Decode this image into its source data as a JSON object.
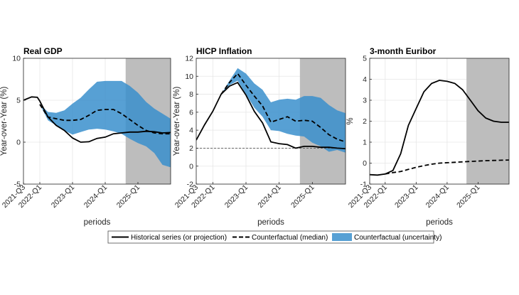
{
  "colors": {
    "historical": "#000000",
    "counterfactual": "#000000",
    "band": "#3a8fcc",
    "band_opacity": 0.85,
    "projection_shade": "#bdbdbd",
    "grid": "#e6e6e6"
  },
  "legend": {
    "historical": "Historical series (or projection)",
    "median": "Counterfactual (median)",
    "uncertainty": "Counterfactual (uncertainty)"
  },
  "chart_data": [
    {
      "type": "line",
      "title": "Real GDP",
      "ylabel": "Year-over-Year (%)",
      "xlabel": "periods",
      "ylim": [
        -5,
        10
      ],
      "yticks": [
        -5,
        0,
        5,
        10
      ],
      "xlim": [
        0,
        18
      ],
      "xticks": [
        {
          "x": 0,
          "label": "2021-Q3"
        },
        {
          "x": 2,
          "label": "2022-Q1"
        },
        {
          "x": 6,
          "label": "2023-Q1"
        },
        {
          "x": 10,
          "label": "2024-Q1"
        },
        {
          "x": 14,
          "label": "2025-Q1"
        }
      ],
      "projection_start": 12.5,
      "reference_line": null,
      "historical": [
        [
          0,
          5.0
        ],
        [
          1,
          5.4
        ],
        [
          1.7,
          5.35
        ],
        [
          2,
          4.9
        ],
        [
          3,
          3.0
        ],
        [
          4,
          2.0
        ],
        [
          5,
          1.4
        ],
        [
          6,
          0.5
        ],
        [
          7,
          0.0
        ],
        [
          8,
          0.05
        ],
        [
          9,
          0.45
        ],
        [
          10,
          0.6
        ],
        [
          11,
          1.0
        ],
        [
          12,
          1.1
        ],
        [
          13,
          1.2
        ],
        [
          14,
          1.2
        ],
        [
          15,
          1.3
        ],
        [
          16,
          1.25
        ],
        [
          17,
          1.1
        ],
        [
          18,
          1.15
        ]
      ],
      "median": [
        [
          2,
          4.5
        ],
        [
          3,
          3.0
        ],
        [
          4,
          2.8
        ],
        [
          5,
          2.6
        ],
        [
          6,
          2.6
        ],
        [
          7,
          2.7
        ],
        [
          8,
          3.2
        ],
        [
          9,
          3.8
        ],
        [
          10,
          3.9
        ],
        [
          11,
          3.9
        ],
        [
          12,
          3.4
        ],
        [
          13,
          2.7
        ],
        [
          14,
          2.0
        ],
        [
          15,
          1.4
        ],
        [
          16,
          1.1
        ],
        [
          17,
          1.0
        ],
        [
          18,
          1.0
        ]
      ],
      "band_upper": [
        [
          2,
          4.5
        ],
        [
          3,
          3.6
        ],
        [
          4,
          3.5
        ],
        [
          5,
          3.8
        ],
        [
          6,
          4.6
        ],
        [
          7,
          5.3
        ],
        [
          8,
          6.3
        ],
        [
          9,
          7.2
        ],
        [
          10,
          7.3
        ],
        [
          11,
          7.3
        ],
        [
          12,
          7.3
        ],
        [
          13,
          6.7
        ],
        [
          14,
          5.9
        ],
        [
          15,
          4.8
        ],
        [
          16,
          4.0
        ],
        [
          17,
          3.4
        ],
        [
          18,
          2.8
        ]
      ],
      "band_lower": [
        [
          18,
          -3.0
        ],
        [
          17,
          -2.7
        ],
        [
          16,
          -1.3
        ],
        [
          15,
          -0.5
        ],
        [
          14,
          -0.1
        ],
        [
          13,
          0.4
        ],
        [
          12,
          1.0
        ],
        [
          11,
          1.3
        ],
        [
          10,
          1.5
        ],
        [
          9,
          1.6
        ],
        [
          8,
          1.5
        ],
        [
          7,
          1.2
        ],
        [
          6,
          0.9
        ],
        [
          5,
          1.4
        ],
        [
          4,
          2.0
        ],
        [
          3,
          2.6
        ],
        [
          2,
          4.5
        ]
      ]
    },
    {
      "type": "line",
      "title": "HICP Inflation",
      "ylabel": "Year-over-Year (%)",
      "xlabel": "periods",
      "ylim": [
        -2,
        12
      ],
      "yticks": [
        -2,
        0,
        2,
        4,
        6,
        8,
        10,
        12
      ],
      "xlim": [
        0,
        18
      ],
      "xticks": [
        {
          "x": 0,
          "label": "2021-Q3"
        },
        {
          "x": 2,
          "label": "2022-Q1"
        },
        {
          "x": 6,
          "label": "2023-Q1"
        },
        {
          "x": 10,
          "label": "2024-Q1"
        },
        {
          "x": 14,
          "label": "2025-Q1"
        }
      ],
      "projection_start": 12.5,
      "reference_line": 2,
      "historical": [
        [
          0,
          2.9
        ],
        [
          1,
          4.6
        ],
        [
          2,
          6.1
        ],
        [
          3,
          8.0
        ],
        [
          4,
          8.9
        ],
        [
          5,
          9.3
        ],
        [
          6,
          7.9
        ],
        [
          7,
          6.1
        ],
        [
          8,
          4.8
        ],
        [
          9,
          2.7
        ],
        [
          10,
          2.5
        ],
        [
          11,
          2.4
        ],
        [
          12,
          2.0
        ],
        [
          13,
          2.2
        ],
        [
          14,
          2.2
        ],
        [
          15,
          2.1
        ],
        [
          16,
          2.1
        ],
        [
          17,
          2.0
        ],
        [
          18,
          1.95
        ]
      ],
      "median": [
        [
          3,
          8.0
        ],
        [
          4,
          9.3
        ],
        [
          5,
          10.3
        ],
        [
          6,
          9.0
        ],
        [
          7,
          7.8
        ],
        [
          8,
          6.7
        ],
        [
          9,
          4.9
        ],
        [
          10,
          5.2
        ],
        [
          11,
          5.5
        ],
        [
          12,
          5.0
        ],
        [
          13,
          5.1
        ],
        [
          14,
          5.0
        ],
        [
          15,
          4.3
        ],
        [
          16,
          3.5
        ],
        [
          17,
          3.0
        ],
        [
          18,
          2.7
        ]
      ],
      "band_upper": [
        [
          3,
          8.0
        ],
        [
          4,
          9.5
        ],
        [
          5,
          10.9
        ],
        [
          6,
          10.3
        ],
        [
          7,
          9.2
        ],
        [
          8,
          8.5
        ],
        [
          9,
          7.1
        ],
        [
          10,
          7.4
        ],
        [
          11,
          7.5
        ],
        [
          12,
          7.4
        ],
        [
          13,
          7.8
        ],
        [
          14,
          7.8
        ],
        [
          15,
          7.6
        ],
        [
          16,
          6.8
        ],
        [
          17,
          6.2
        ],
        [
          18,
          5.9
        ]
      ],
      "band_lower": [
        [
          18,
          1.5
        ],
        [
          17,
          1.8
        ],
        [
          16,
          1.6
        ],
        [
          15,
          2.2
        ],
        [
          14,
          2.6
        ],
        [
          13,
          3.3
        ],
        [
          12,
          3.4
        ],
        [
          11,
          3.6
        ],
        [
          10,
          3.9
        ],
        [
          9,
          4.0
        ],
        [
          8,
          5.5
        ],
        [
          7,
          6.5
        ],
        [
          6,
          8.0
        ],
        [
          5,
          9.5
        ],
        [
          4,
          9.0
        ],
        [
          3,
          8.0
        ]
      ]
    },
    {
      "type": "line",
      "title": "3-month Euribor",
      "ylabel": "%",
      "xlabel": "periods",
      "ylim": [
        -1,
        5
      ],
      "yticks": [
        -1,
        0,
        1,
        2,
        3,
        4,
        5
      ],
      "xlim": [
        0,
        18
      ],
      "xticks": [
        {
          "x": 0,
          "label": "2021-Q3"
        },
        {
          "x": 2,
          "label": "2022-Q1"
        },
        {
          "x": 6,
          "label": "2023-Q1"
        },
        {
          "x": 10,
          "label": "2024-Q1"
        },
        {
          "x": 14,
          "label": "2025-Q1"
        }
      ],
      "projection_start": 12.5,
      "reference_line": null,
      "historical": [
        [
          0,
          -0.55
        ],
        [
          1,
          -0.57
        ],
        [
          2,
          -0.52
        ],
        [
          3,
          -0.35
        ],
        [
          4,
          0.45
        ],
        [
          5,
          1.8
        ],
        [
          6,
          2.6
        ],
        [
          7,
          3.4
        ],
        [
          8,
          3.8
        ],
        [
          9,
          3.95
        ],
        [
          10,
          3.9
        ],
        [
          11,
          3.8
        ],
        [
          12,
          3.5
        ],
        [
          13,
          3.0
        ],
        [
          14,
          2.5
        ],
        [
          15,
          2.15
        ],
        [
          16,
          2.0
        ],
        [
          17,
          1.95
        ],
        [
          18,
          1.95
        ]
      ],
      "median": [
        [
          2,
          -0.52
        ],
        [
          3,
          -0.45
        ],
        [
          4,
          -0.4
        ],
        [
          5,
          -0.3
        ],
        [
          6,
          -0.2
        ],
        [
          7,
          -0.12
        ],
        [
          8,
          -0.05
        ],
        [
          9,
          0.0
        ],
        [
          10,
          0.02
        ],
        [
          11,
          0.04
        ],
        [
          12,
          0.06
        ],
        [
          13,
          0.08
        ],
        [
          14,
          0.1
        ],
        [
          15,
          0.12
        ],
        [
          16,
          0.13
        ],
        [
          17,
          0.14
        ],
        [
          18,
          0.15
        ]
      ],
      "band_upper": [],
      "band_lower": []
    }
  ]
}
